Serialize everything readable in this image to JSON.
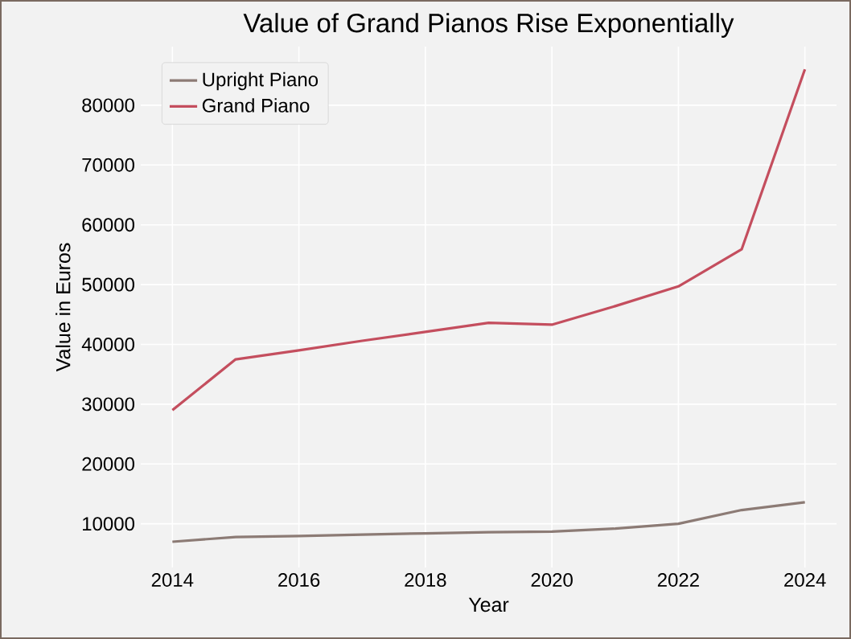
{
  "chart_data": {
    "type": "line",
    "title": "Value of Grand Pianos Rise Exponentially",
    "xlabel": "Year",
    "ylabel": "Value in Euros",
    "x": [
      2014,
      2015,
      2016,
      2017,
      2018,
      2019,
      2020,
      2021,
      2022,
      2023,
      2024
    ],
    "series": [
      {
        "name": "Upright Piano",
        "color": "#8c7b75",
        "values": [
          7000,
          7800,
          7950,
          8200,
          8400,
          8600,
          8700,
          9200,
          10000,
          12300,
          13600
        ]
      },
      {
        "name": "Grand Piano",
        "color": "#c44e5e",
        "values": [
          29000,
          37500,
          39000,
          40600,
          42100,
          43600,
          43300,
          46400,
          49700,
          55900,
          86000
        ]
      }
    ],
    "xlim": [
      2013.5,
      2024.5
    ],
    "ylim": [
      2700,
      89800
    ],
    "xticks": [
      2014,
      2016,
      2018,
      2020,
      2022,
      2024
    ],
    "yticks": [
      10000,
      20000,
      30000,
      40000,
      50000,
      60000,
      70000,
      80000
    ],
    "grid": true,
    "legend": "top left",
    "marker": "none",
    "line_style": "solid"
  }
}
